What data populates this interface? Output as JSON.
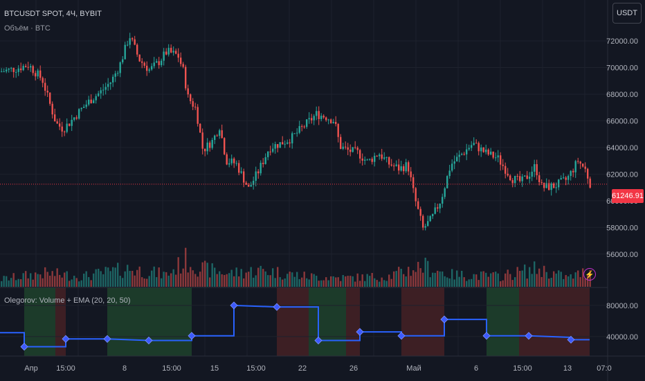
{
  "header": {
    "symbol_line": "BTCUSDT SPOT, 4Ч, BYBIT",
    "volume_label": "Объём · BTC",
    "indicator_label": "Olegorov: Volume + EMA (20, 20, 50)"
  },
  "currency_button": "USDT",
  "colors": {
    "up": "#26a69a",
    "down": "#ef5350",
    "ema": "#2962ff",
    "price_line": "#f23645",
    "bg": "#131722",
    "grid": "#1e222d",
    "zone_green": "#1c3b2a",
    "zone_red": "#3d1f24"
  },
  "chart_data": [
    {
      "type": "candlestick",
      "title": "BTCUSDT SPOT, 4Ч, BYBIT",
      "y_ticks": [
        "72000.00",
        "70000.00",
        "68000.00",
        "66000.00",
        "64000.00",
        "62000.00",
        "60000.00",
        "58000.00",
        "56000.00"
      ],
      "ylim": [
        55000,
        73500
      ],
      "last_price": "61246.91",
      "x_ticks": [
        "Апр",
        "15:00",
        "8",
        "15:00",
        "15",
        "15:00",
        "22",
        "26",
        "Май",
        "6",
        "15:00",
        "13",
        "07:0"
      ],
      "close_path": [
        {
          "x": 0,
          "y": 69700
        },
        {
          "x": 20,
          "y": 69900
        },
        {
          "x": 40,
          "y": 70200
        },
        {
          "x": 60,
          "y": 69100
        },
        {
          "x": 70,
          "y": 67400
        },
        {
          "x": 80,
          "y": 65800
        },
        {
          "x": 90,
          "y": 65400
        },
        {
          "x": 100,
          "y": 65900
        },
        {
          "x": 115,
          "y": 66800
        },
        {
          "x": 130,
          "y": 67600
        },
        {
          "x": 145,
          "y": 68200
        },
        {
          "x": 160,
          "y": 69000
        },
        {
          "x": 172,
          "y": 70200
        },
        {
          "x": 186,
          "y": 72400
        },
        {
          "x": 200,
          "y": 70600
        },
        {
          "x": 215,
          "y": 69800
        },
        {
          "x": 228,
          "y": 70400
        },
        {
          "x": 240,
          "y": 71200
        },
        {
          "x": 256,
          "y": 70900
        },
        {
          "x": 264,
          "y": 69700
        },
        {
          "x": 270,
          "y": 67800
        },
        {
          "x": 282,
          "y": 66900
        },
        {
          "x": 292,
          "y": 63800
        },
        {
          "x": 306,
          "y": 64500
        },
        {
          "x": 316,
          "y": 65600
        },
        {
          "x": 326,
          "y": 63000
        },
        {
          "x": 340,
          "y": 62800
        },
        {
          "x": 358,
          "y": 60900
        },
        {
          "x": 372,
          "y": 62200
        },
        {
          "x": 388,
          "y": 64000
        },
        {
          "x": 404,
          "y": 64300
        },
        {
          "x": 420,
          "y": 64700
        },
        {
          "x": 438,
          "y": 65600
        },
        {
          "x": 456,
          "y": 66500
        },
        {
          "x": 470,
          "y": 66300
        },
        {
          "x": 482,
          "y": 66000
        },
        {
          "x": 490,
          "y": 64100
        },
        {
          "x": 500,
          "y": 63800
        },
        {
          "x": 516,
          "y": 63600
        },
        {
          "x": 530,
          "y": 62900
        },
        {
          "x": 546,
          "y": 63600
        },
        {
          "x": 560,
          "y": 62800
        },
        {
          "x": 576,
          "y": 62400
        },
        {
          "x": 588,
          "y": 62700
        },
        {
          "x": 598,
          "y": 60200
        },
        {
          "x": 610,
          "y": 57900
        },
        {
          "x": 622,
          "y": 58600
        },
        {
          "x": 636,
          "y": 60100
        },
        {
          "x": 650,
          "y": 62700
        },
        {
          "x": 666,
          "y": 63500
        },
        {
          "x": 682,
          "y": 64300
        },
        {
          "x": 700,
          "y": 63600
        },
        {
          "x": 718,
          "y": 63200
        },
        {
          "x": 738,
          "y": 61700
        },
        {
          "x": 752,
          "y": 61400
        },
        {
          "x": 762,
          "y": 61900
        },
        {
          "x": 772,
          "y": 62600
        },
        {
          "x": 782,
          "y": 61000
        },
        {
          "x": 800,
          "y": 61100
        },
        {
          "x": 818,
          "y": 61600
        },
        {
          "x": 834,
          "y": 63000
        },
        {
          "x": 844,
          "y": 62400
        },
        {
          "x": 852,
          "y": 61250
        }
      ],
      "volume_profile": [
        {
          "x": 0,
          "v": 0.25
        },
        {
          "x": 60,
          "v": 0.45
        },
        {
          "x": 120,
          "v": 0.35
        },
        {
          "x": 185,
          "v": 0.6
        },
        {
          "x": 240,
          "v": 0.4
        },
        {
          "x": 268,
          "v": 0.9
        },
        {
          "x": 290,
          "v": 0.6
        },
        {
          "x": 330,
          "v": 0.45
        },
        {
          "x": 380,
          "v": 0.55
        },
        {
          "x": 440,
          "v": 0.35
        },
        {
          "x": 500,
          "v": 0.3
        },
        {
          "x": 560,
          "v": 0.35
        },
        {
          "x": 610,
          "v": 0.7
        },
        {
          "x": 650,
          "v": 0.4
        },
        {
          "x": 720,
          "v": 0.35
        },
        {
          "x": 775,
          "v": 0.6
        },
        {
          "x": 820,
          "v": 0.3
        },
        {
          "x": 852,
          "v": 0.55
        }
      ]
    },
    {
      "type": "line",
      "name": "Olegorov: Volume + EMA (20, 20, 50)",
      "y_ticks": [
        "80000.00",
        "40000.00"
      ],
      "ylim": [
        15000,
        95000
      ],
      "step_points": [
        {
          "x": 0,
          "y": 45000
        },
        {
          "x": 35,
          "y": 45000
        },
        {
          "x": 35,
          "y": 27000
        },
        {
          "x": 95,
          "y": 27000
        },
        {
          "x": 95,
          "y": 37000
        },
        {
          "x": 155,
          "y": 37000
        },
        {
          "x": 215,
          "y": 35000
        },
        {
          "x": 277,
          "y": 35000
        },
        {
          "x": 277,
          "y": 41000
        },
        {
          "x": 338,
          "y": 41000
        },
        {
          "x": 338,
          "y": 80000
        },
        {
          "x": 400,
          "y": 78000
        },
        {
          "x": 460,
          "y": 78000
        },
        {
          "x": 460,
          "y": 35000
        },
        {
          "x": 520,
          "y": 35000
        },
        {
          "x": 520,
          "y": 46000
        },
        {
          "x": 580,
          "y": 46000
        },
        {
          "x": 580,
          "y": 41000
        },
        {
          "x": 642,
          "y": 41000
        },
        {
          "x": 642,
          "y": 62000
        },
        {
          "x": 703,
          "y": 62000
        },
        {
          "x": 703,
          "y": 41000
        },
        {
          "x": 764,
          "y": 41000
        },
        {
          "x": 825,
          "y": 39000
        },
        {
          "x": 825,
          "y": 36000
        },
        {
          "x": 852,
          "y": 36000
        }
      ],
      "markers_x": [
        35,
        95,
        155,
        215,
        277,
        338,
        400,
        460,
        520,
        580,
        642,
        703,
        764,
        825
      ],
      "zones": [
        {
          "from": 35,
          "to": 80,
          "color": "green"
        },
        {
          "from": 80,
          "to": 95,
          "color": "red"
        },
        {
          "from": 155,
          "to": 277,
          "color": "green"
        },
        {
          "from": 400,
          "to": 446,
          "color": "red"
        },
        {
          "from": 446,
          "to": 500,
          "color": "green"
        },
        {
          "from": 500,
          "to": 520,
          "color": "red"
        },
        {
          "from": 580,
          "to": 642,
          "color": "red"
        },
        {
          "from": 703,
          "to": 750,
          "color": "green"
        },
        {
          "from": 750,
          "to": 852,
          "color": "red"
        }
      ]
    }
  ]
}
